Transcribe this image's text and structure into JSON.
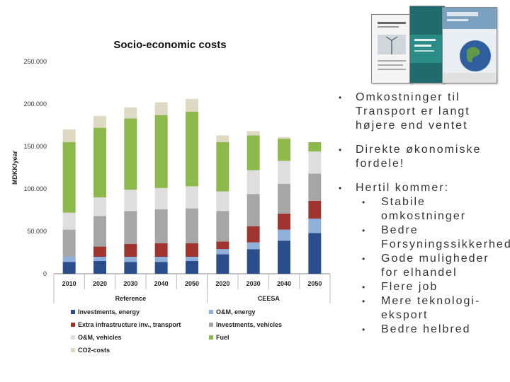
{
  "chart_data": {
    "type": "bar",
    "stacked": true,
    "title": "Socio-economic costs",
    "ylabel": "MDKK/year",
    "ylim": [
      0,
      250000
    ],
    "yticks": [
      "0",
      "50.000",
      "100.000",
      "150.000",
      "200.000",
      "250.000"
    ],
    "ytick_values": [
      0,
      50000,
      100000,
      150000,
      200000,
      250000
    ],
    "categories": [
      "2010",
      "2020",
      "2030",
      "2040",
      "2050",
      "2020",
      "2030",
      "2040",
      "2050"
    ],
    "groups": [
      {
        "label": "Reference",
        "count": 5
      },
      {
        "label": "CEESA",
        "count": 4
      }
    ],
    "series": [
      {
        "name": "Investments, energy",
        "color": "#2a4e8c",
        "values": [
          14000,
          15000,
          14000,
          14000,
          15000,
          23000,
          29000,
          39000,
          48000
        ]
      },
      {
        "name": "O&M, energy",
        "color": "#8fb0da",
        "values": [
          6000,
          5000,
          6000,
          6000,
          5000,
          6000,
          8000,
          13000,
          17000
        ]
      },
      {
        "name": "Extra infrastructure inv., transport",
        "color": "#a03530",
        "values": [
          0,
          12000,
          15000,
          16000,
          16000,
          9000,
          19000,
          19000,
          21000
        ]
      },
      {
        "name": "Investments, vehicles",
        "color": "#a6a6a6",
        "values": [
          32000,
          36000,
          39000,
          40000,
          41000,
          36000,
          38000,
          35000,
          32000
        ]
      },
      {
        "name": "O&M, vehicles",
        "color": "#dedede",
        "values": [
          20000,
          22000,
          25000,
          25000,
          26000,
          23000,
          28000,
          27000,
          26000
        ]
      },
      {
        "name": "Fuel",
        "color": "#8db84a",
        "values": [
          83000,
          82000,
          84000,
          86000,
          88000,
          58000,
          41000,
          26000,
          11000
        ]
      },
      {
        "name": "CO2-costs",
        "color": "#ddd9c3",
        "values": [
          15000,
          14000,
          13000,
          15000,
          15000,
          8000,
          5000,
          2000,
          0
        ]
      }
    ],
    "legend_position": "bottom",
    "grid": false
  },
  "bullets": [
    {
      "text": "Omkostninger til Transport er langt højere end ventet",
      "children": []
    },
    {
      "text": "Direkte økonomiske fordele!",
      "children": []
    },
    {
      "text": "Hertil kommer:",
      "children": [
        "Stabile omkostninger",
        "Bedre Forsyningssikkerhed",
        "Gode muligheder for elhandel",
        "Flere job",
        "Mere teknologi-eksport",
        "Bedre helbred"
      ]
    }
  ],
  "bullet_glyph": "•",
  "thumbnail_colors": [
    "#f4f4f4",
    "#1f6b6e",
    "#e9eef2"
  ],
  "thumbnail_icons": [
    "report-cover-wind-icon",
    "report-cover-green-icon",
    "report-cover-earth-icon"
  ]
}
